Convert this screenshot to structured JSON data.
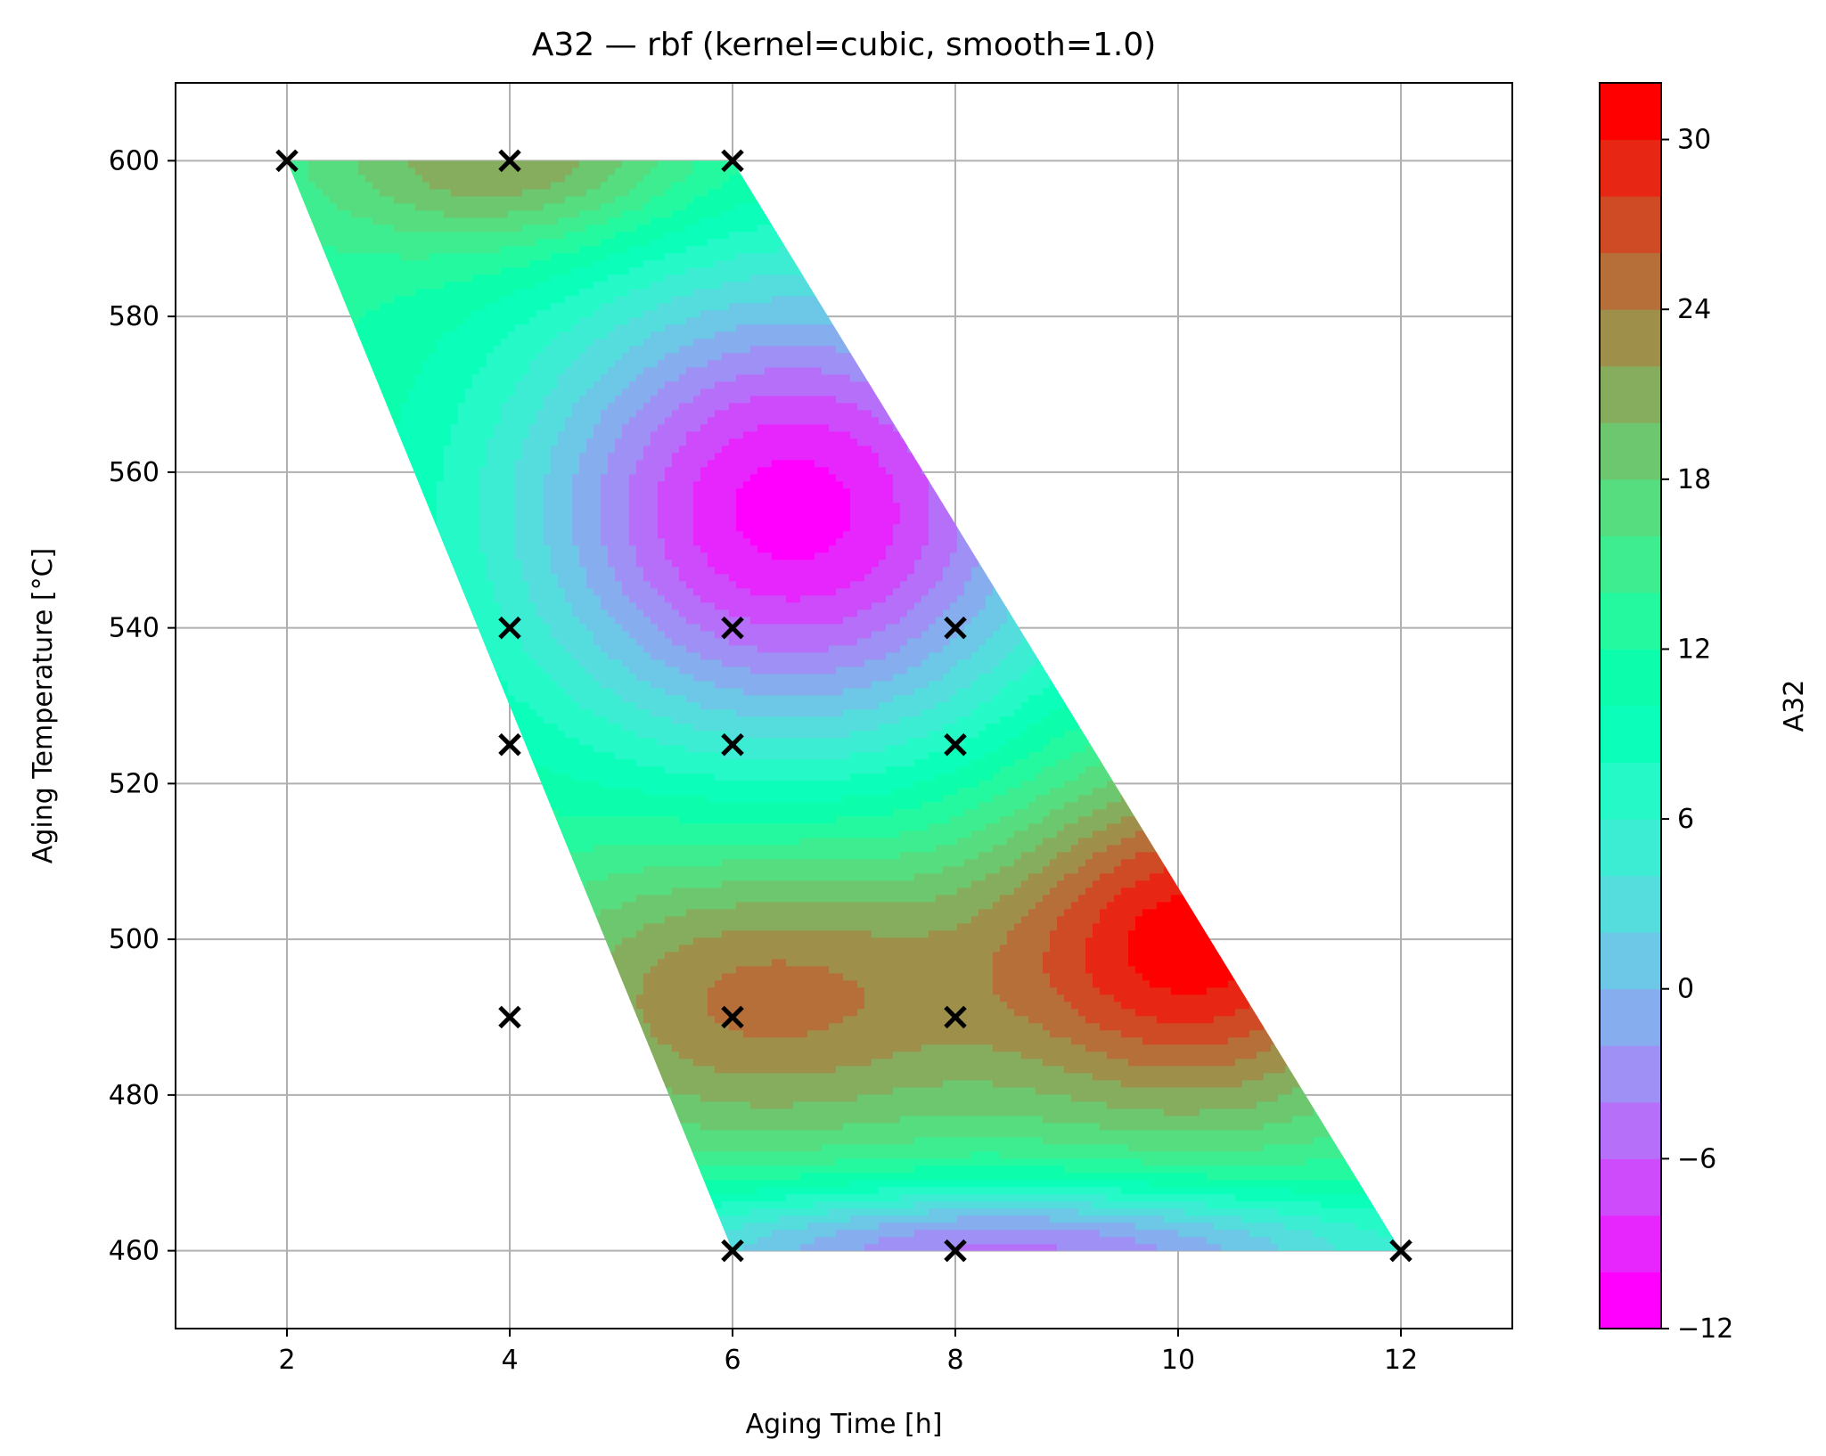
{
  "chart_data": {
    "type": "heatmap",
    "subtype": "filled-contour",
    "title": "A32 — rbf (kernel=cubic, smooth=1.0)",
    "xlabel": "Aging Time [h]",
    "ylabel": "Aging Temperature [°C]",
    "colorbar_label": "A32",
    "xlim": [
      1,
      13
    ],
    "ylim": [
      450,
      610
    ],
    "x_ticks": [
      2,
      4,
      6,
      8,
      10,
      12
    ],
    "y_ticks": [
      460,
      480,
      500,
      520,
      540,
      560,
      580,
      600
    ],
    "colorbar_range": [
      -12,
      32
    ],
    "colorbar_ticks": [
      -12,
      -6,
      0,
      6,
      12,
      18,
      24,
      30
    ],
    "colorbar_tick_labels": [
      "−12",
      "−6",
      "0",
      "6",
      "12",
      "18",
      "24",
      "30"
    ],
    "contour_levels": [
      -12,
      -10,
      -8,
      -6,
      -4,
      -2,
      0,
      2,
      4,
      6,
      8,
      10,
      12,
      14,
      16,
      18,
      20,
      22,
      24,
      26,
      28,
      30,
      32
    ],
    "colormap": "rainbow",
    "grid": true,
    "domain_polygon": [
      [
        2,
        600
      ],
      [
        6,
        600
      ],
      [
        12,
        460
      ],
      [
        6,
        460
      ]
    ],
    "sample_points": [
      {
        "x": 2,
        "y": 600
      },
      {
        "x": 4,
        "y": 600
      },
      {
        "x": 6,
        "y": 600
      },
      {
        "x": 4,
        "y": 540
      },
      {
        "x": 6,
        "y": 540
      },
      {
        "x": 8,
        "y": 540
      },
      {
        "x": 4,
        "y": 525
      },
      {
        "x": 6,
        "y": 525
      },
      {
        "x": 8,
        "y": 525
      },
      {
        "x": 4,
        "y": 490
      },
      {
        "x": 6,
        "y": 490
      },
      {
        "x": 8,
        "y": 490
      },
      {
        "x": 6,
        "y": 460
      },
      {
        "x": 8,
        "y": 460
      },
      {
        "x": 12,
        "y": 460
      }
    ],
    "field_features": [
      {
        "x": 6.55,
        "y": 555,
        "value": -11,
        "sigma_x": 1.8,
        "sigma_y": 22,
        "type": "minimum"
      },
      {
        "x": 6.3,
        "y": 493,
        "value": 25,
        "sigma_x": 1.6,
        "sigma_y": 14,
        "type": "local-maximum"
      },
      {
        "x": 10.2,
        "y": 500,
        "value": 31,
        "sigma_x": 1.3,
        "sigma_y": 16,
        "type": "maximum"
      },
      {
        "x": 4,
        "y": 600,
        "value": 23,
        "sigma_x": 1.2,
        "sigma_y": 8,
        "type": "local-maximum"
      },
      {
        "x": 8.5,
        "y": 460,
        "value": -5,
        "sigma_x": 2.6,
        "sigma_y": 6,
        "type": "minimum"
      }
    ]
  }
}
